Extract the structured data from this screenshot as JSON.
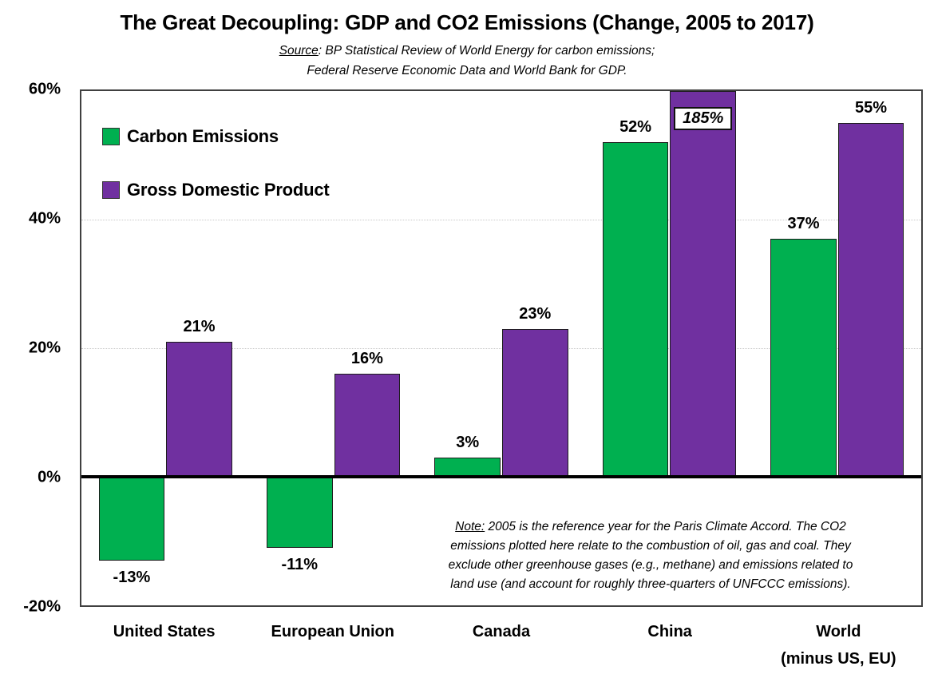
{
  "chart_data": {
    "type": "bar",
    "title": "The Great Decoupling: GDP and CO2 Emissions (Change, 2005 to 2017)",
    "source": {
      "label": "Source",
      "line1_rest": ": BP Statistical Review of World Energy for carbon emissions;",
      "line2": "Federal Reserve Economic Data and World Bank for GDP."
    },
    "note": {
      "label": "Note:",
      "line1_rest": " 2005 is the reference year for the Paris Climate Accord. The CO2",
      "line2": "emissions plotted here relate to the combustion of oil, gas and coal. They",
      "line3": "exclude other greenhouse gases (e.g., methane) and emissions related to",
      "line4": "land use (and account for roughly three-quarters of UNFCCC emissions)."
    },
    "categories": [
      "United States",
      "European Union",
      "Canada",
      "China",
      "World\n(minus US, EU)"
    ],
    "series": [
      {
        "name": "Carbon Emissions",
        "color": "#00B050",
        "values": [
          -13,
          -11,
          3,
          52,
          37
        ],
        "labels": [
          "-13%",
          "-11%",
          "3%",
          "52%",
          "37%"
        ],
        "boxed": [
          false,
          false,
          false,
          false,
          false
        ]
      },
      {
        "name": "Gross Domestic Product",
        "color": "#7030A0",
        "values": [
          21,
          16,
          23,
          185,
          55
        ],
        "labels": [
          "21%",
          "16%",
          "23%",
          "185%",
          "55%"
        ],
        "boxed": [
          false,
          false,
          false,
          true,
          false
        ]
      }
    ],
    "ylim": [
      -20,
      60
    ],
    "yticks": [
      {
        "value": 60,
        "label": "60%"
      },
      {
        "value": 40,
        "label": "40%"
      },
      {
        "value": 20,
        "label": "20%"
      },
      {
        "value": 0,
        "label": "0%"
      },
      {
        "value": -20,
        "label": "-20%"
      }
    ],
    "gridlines": [
      40,
      20
    ],
    "grid": "horizontal-dotted",
    "legend_position": "top-left-inside-plot",
    "xlabel": "",
    "ylabel": ""
  }
}
